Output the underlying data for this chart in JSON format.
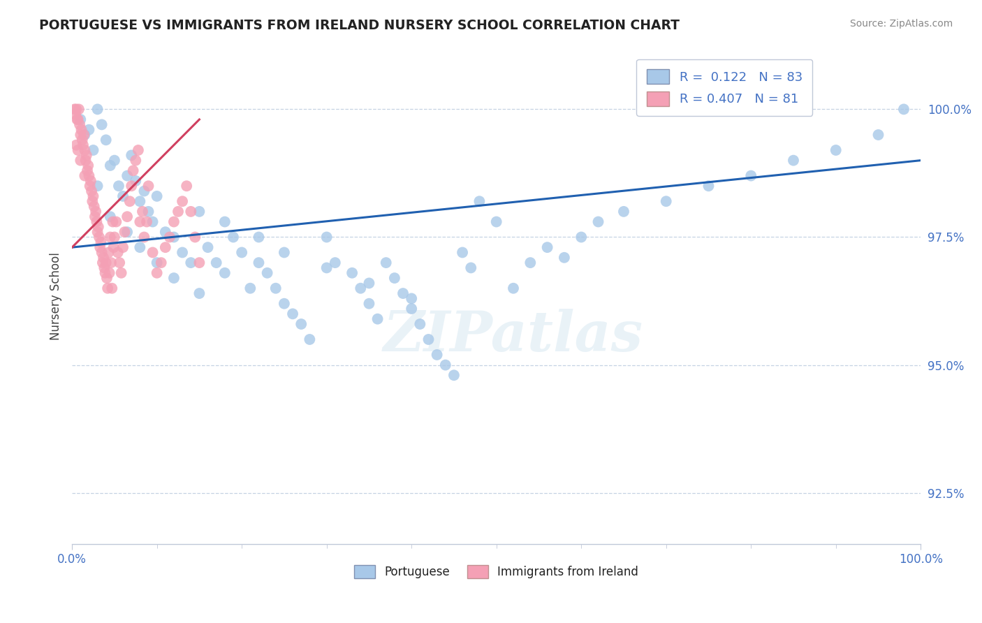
{
  "title": "PORTUGUESE VS IMMIGRANTS FROM IRELAND NURSERY SCHOOL CORRELATION CHART",
  "source": "Source: ZipAtlas.com",
  "ylabel": "Nursery School",
  "xlim": [
    0,
    100
  ],
  "ylim": [
    91.5,
    101.2
  ],
  "yticks": [
    92.5,
    95.0,
    97.5,
    100.0
  ],
  "ytick_labels": [
    "92.5%",
    "95.0%",
    "97.5%",
    "100.0%"
  ],
  "blue_R": 0.122,
  "blue_N": 83,
  "pink_R": 0.407,
  "pink_N": 81,
  "blue_color": "#A8C8E8",
  "pink_color": "#F4A0B5",
  "blue_line_color": "#2060B0",
  "pink_line_color": "#D04060",
  "axis_label_color": "#4472C4",
  "title_color": "#222222",
  "blue_scatter_x": [
    1.0,
    1.5,
    2.0,
    2.5,
    3.0,
    3.5,
    4.0,
    4.5,
    5.0,
    5.5,
    6.0,
    6.5,
    7.0,
    7.5,
    8.0,
    8.5,
    9.0,
    9.5,
    10.0,
    11.0,
    12.0,
    13.0,
    14.0,
    15.0,
    16.0,
    17.0,
    18.0,
    19.0,
    20.0,
    21.0,
    22.0,
    23.0,
    24.0,
    25.0,
    26.0,
    27.0,
    28.0,
    30.0,
    31.0,
    33.0,
    34.0,
    35.0,
    36.0,
    37.0,
    38.0,
    39.0,
    40.0,
    41.0,
    42.0,
    43.0,
    44.0,
    45.0,
    46.0,
    47.0,
    48.0,
    50.0,
    52.0,
    54.0,
    56.0,
    58.0,
    60.0,
    62.0,
    65.0,
    70.0,
    75.0,
    80.0,
    85.0,
    90.0,
    95.0,
    98.0,
    3.0,
    4.5,
    6.5,
    8.0,
    10.0,
    12.0,
    15.0,
    18.0,
    22.0,
    25.0,
    30.0,
    35.0,
    40.0
  ],
  "blue_scatter_y": [
    99.8,
    99.5,
    99.6,
    99.2,
    100.0,
    99.7,
    99.4,
    98.9,
    99.0,
    98.5,
    98.3,
    98.7,
    99.1,
    98.6,
    98.2,
    98.4,
    98.0,
    97.8,
    98.3,
    97.6,
    97.5,
    97.2,
    97.0,
    98.0,
    97.3,
    97.0,
    96.8,
    97.5,
    97.2,
    96.5,
    97.0,
    96.8,
    96.5,
    96.2,
    96.0,
    95.8,
    95.5,
    97.5,
    97.0,
    96.8,
    96.5,
    96.2,
    95.9,
    97.0,
    96.7,
    96.4,
    96.1,
    95.8,
    95.5,
    95.2,
    95.0,
    94.8,
    97.2,
    96.9,
    98.2,
    97.8,
    96.5,
    97.0,
    97.3,
    97.1,
    97.5,
    97.8,
    98.0,
    98.2,
    98.5,
    98.7,
    99.0,
    99.2,
    99.5,
    100.0,
    98.5,
    97.9,
    97.6,
    97.3,
    97.0,
    96.7,
    96.4,
    97.8,
    97.5,
    97.2,
    96.9,
    96.6,
    96.3
  ],
  "pink_scatter_x": [
    0.3,
    0.4,
    0.5,
    0.6,
    0.7,
    0.8,
    0.9,
    1.0,
    1.1,
    1.2,
    1.3,
    1.4,
    1.5,
    1.6,
    1.7,
    1.8,
    1.9,
    2.0,
    2.1,
    2.2,
    2.3,
    2.4,
    2.5,
    2.6,
    2.7,
    2.8,
    2.9,
    3.0,
    3.1,
    3.2,
    3.3,
    3.4,
    3.5,
    3.6,
    3.7,
    3.8,
    3.9,
    4.0,
    4.1,
    4.2,
    4.3,
    4.4,
    4.5,
    4.6,
    4.7,
    4.8,
    4.9,
    5.0,
    5.2,
    5.4,
    5.6,
    5.8,
    6.0,
    6.2,
    6.5,
    6.8,
    7.0,
    7.2,
    7.5,
    7.8,
    8.0,
    8.3,
    8.5,
    8.8,
    9.0,
    9.5,
    10.0,
    10.5,
    11.0,
    11.5,
    12.0,
    12.5,
    13.0,
    13.5,
    14.0,
    14.5,
    15.0,
    0.5,
    0.7,
    1.0,
    1.5
  ],
  "pink_scatter_y": [
    100.0,
    99.9,
    100.0,
    99.8,
    99.8,
    100.0,
    99.7,
    99.5,
    99.6,
    99.4,
    99.3,
    99.5,
    99.2,
    99.0,
    99.1,
    98.8,
    98.9,
    98.7,
    98.5,
    98.6,
    98.4,
    98.2,
    98.3,
    98.1,
    97.9,
    98.0,
    97.8,
    97.6,
    97.7,
    97.5,
    97.3,
    97.4,
    97.2,
    97.0,
    97.1,
    96.9,
    96.8,
    97.0,
    96.7,
    96.5,
    97.2,
    96.8,
    97.5,
    97.0,
    96.5,
    97.8,
    97.3,
    97.5,
    97.8,
    97.2,
    97.0,
    96.8,
    97.3,
    97.6,
    97.9,
    98.2,
    98.5,
    98.8,
    99.0,
    99.2,
    97.8,
    98.0,
    97.5,
    97.8,
    98.5,
    97.2,
    96.8,
    97.0,
    97.3,
    97.5,
    97.8,
    98.0,
    98.2,
    98.5,
    98.0,
    97.5,
    97.0,
    99.3,
    99.2,
    99.0,
    98.7
  ],
  "blue_line_x0": 0,
  "blue_line_y0": 97.3,
  "blue_line_x1": 100,
  "blue_line_y1": 99.0,
  "pink_line_x0": 0,
  "pink_line_y0": 97.3,
  "pink_line_x1": 15,
  "pink_line_y1": 99.8
}
